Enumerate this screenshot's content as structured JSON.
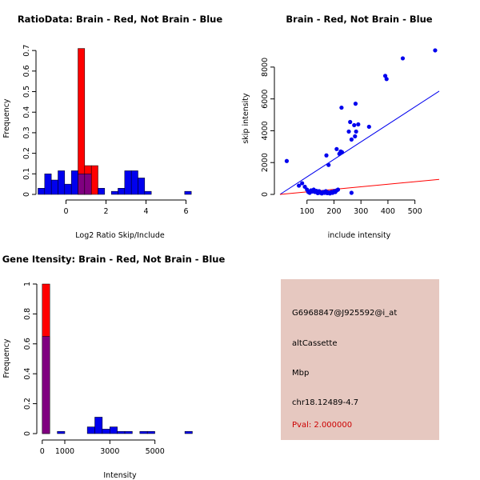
{
  "colors": {
    "red": "#ff0000",
    "blue": "#0000ee",
    "overlap": "#800080",
    "panel_bg": "#e6c8c0",
    "pval_text": "#cc0000"
  },
  "chart_data": [
    {
      "type": "bar",
      "title": "RatioData: Brain - Red, Not Brain - Blue",
      "xlabel": "Log2 Ratio Skip/Include",
      "ylabel": "Frequency",
      "xlim": [
        -1.5,
        6.7
      ],
      "ylim": [
        0,
        0.72
      ],
      "xticks": [
        0,
        2,
        4,
        6
      ],
      "yticks": [
        0.0,
        0.1,
        0.2,
        0.3,
        0.4,
        0.5,
        0.6,
        0.7
      ],
      "bin_width": 0.333,
      "series": [
        {
          "name": "Brain",
          "color": "red",
          "bins": [
            {
              "start": 0.6,
              "value": 0.71
            },
            {
              "start": 0.933,
              "value": 0.14
            },
            {
              "start": 1.267,
              "value": 0.14
            }
          ]
        },
        {
          "name": "Not Brain",
          "color": "blue",
          "bins": [
            {
              "start": -1.4,
              "value": 0.03
            },
            {
              "start": -1.067,
              "value": 0.1
            },
            {
              "start": -0.733,
              "value": 0.07
            },
            {
              "start": -0.4,
              "value": 0.115
            },
            {
              "start": -0.067,
              "value": 0.05
            },
            {
              "start": 0.267,
              "value": 0.115
            },
            {
              "start": 0.6,
              "value": 0.1
            },
            {
              "start": 0.933,
              "value": 0.1
            },
            {
              "start": 1.6,
              "value": 0.03
            },
            {
              "start": 2.267,
              "value": 0.015
            },
            {
              "start": 2.6,
              "value": 0.03
            },
            {
              "start": 2.933,
              "value": 0.115
            },
            {
              "start": 3.267,
              "value": 0.115
            },
            {
              "start": 3.6,
              "value": 0.08
            },
            {
              "start": 3.933,
              "value": 0.015
            },
            {
              "start": 5.933,
              "value": 0.015
            }
          ]
        }
      ]
    },
    {
      "type": "scatter",
      "title": "Brain - Red, Not Brain - Blue",
      "xlabel": "include intensity",
      "ylabel": "skip intensity",
      "xlim": [
        0,
        590
      ],
      "ylim": [
        0,
        9300
      ],
      "xticks": [
        100,
        200,
        300,
        400,
        500
      ],
      "yticks": [
        0,
        2000,
        4000,
        6000,
        8000
      ],
      "points": [
        [
          25,
          2100
        ],
        [
          70,
          550
        ],
        [
          82,
          700
        ],
        [
          92,
          480
        ],
        [
          100,
          300
        ],
        [
          105,
          150
        ],
        [
          110,
          100
        ],
        [
          115,
          250
        ],
        [
          120,
          180
        ],
        [
          125,
          300
        ],
        [
          130,
          150
        ],
        [
          135,
          220
        ],
        [
          140,
          80
        ],
        [
          145,
          200
        ],
        [
          150,
          120
        ],
        [
          155,
          60
        ],
        [
          160,
          150
        ],
        [
          165,
          100
        ],
        [
          170,
          200
        ],
        [
          175,
          80
        ],
        [
          180,
          120
        ],
        [
          185,
          60
        ],
        [
          190,
          150
        ],
        [
          195,
          100
        ],
        [
          200,
          200
        ],
        [
          205,
          150
        ],
        [
          210,
          250
        ],
        [
          215,
          300
        ],
        [
          150,
          100
        ],
        [
          172,
          2450
        ],
        [
          180,
          1850
        ],
        [
          210,
          2850
        ],
        [
          220,
          2550
        ],
        [
          225,
          2700
        ],
        [
          230,
          2650
        ],
        [
          228,
          5450
        ],
        [
          255,
          3950
        ],
        [
          260,
          4550
        ],
        [
          265,
          3450
        ],
        [
          275,
          4350
        ],
        [
          278,
          3650
        ],
        [
          280,
          5700
        ],
        [
          282,
          3950
        ],
        [
          290,
          4400
        ],
        [
          330,
          4250
        ],
        [
          265,
          100
        ],
        [
          390,
          7450
        ],
        [
          395,
          7250
        ],
        [
          455,
          8550
        ],
        [
          575,
          9050
        ]
      ],
      "lines": [
        {
          "color": "blue",
          "intercept": 0,
          "slope": 11.0
        },
        {
          "color": "red",
          "intercept": 0,
          "slope": 1.6
        }
      ]
    },
    {
      "type": "bar",
      "title": "Gene Itensity: Brain - Red, Not Brain - Blue",
      "xlabel": "Intensity",
      "ylabel": "Frequency",
      "xlim": [
        -100,
        7000
      ],
      "ylim": [
        0,
        1.0
      ],
      "xticks": [
        0,
        1000,
        3000,
        5000
      ],
      "yticks": [
        0.0,
        0.2,
        0.4,
        0.6,
        0.8,
        1.0
      ],
      "bin_width": 333,
      "series": [
        {
          "name": "Brain",
          "color": "red",
          "bins": [
            {
              "start": 0,
              "value": 1.0
            }
          ]
        },
        {
          "name": "Not Brain",
          "color": "blue",
          "bins": [
            {
              "start": 0,
              "value": 0.65
            },
            {
              "start": 667,
              "value": 0.015
            },
            {
              "start": 1999,
              "value": 0.045
            },
            {
              "start": 2332,
              "value": 0.11
            },
            {
              "start": 2665,
              "value": 0.03
            },
            {
              "start": 2998,
              "value": 0.045
            },
            {
              "start": 3331,
              "value": 0.015
            },
            {
              "start": 3664,
              "value": 0.015
            },
            {
              "start": 4330,
              "value": 0.015
            },
            {
              "start": 4663,
              "value": 0.015
            },
            {
              "start": 6328,
              "value": 0.015
            }
          ]
        }
      ]
    }
  ],
  "info": {
    "probe_id": "G6968847@J925592@i_at",
    "event_type": "altCassette",
    "gene": "Mbp",
    "location": "chr18.12489-4.7",
    "pval": "Pval: 2.000000"
  }
}
